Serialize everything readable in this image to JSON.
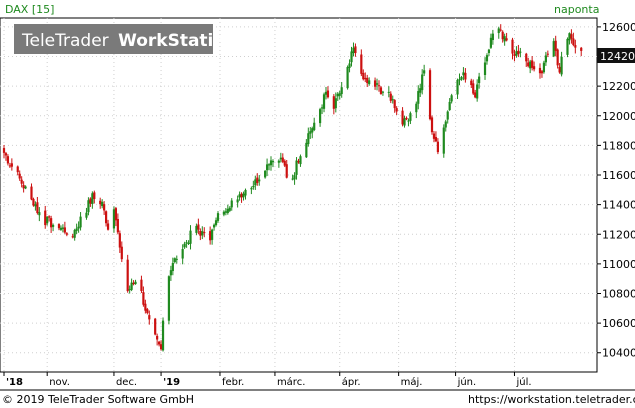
{
  "chart_data": {
    "type": "candlestick",
    "symbol_label": "DAX [15]",
    "period_label": "naponta",
    "watermark": {
      "part1": "TeleTrader",
      "part2": "WorkStation"
    },
    "last_price_label": "12420",
    "y_ticks": [
      10400,
      10600,
      10800,
      11000,
      11200,
      11400,
      11600,
      11800,
      12000,
      12200,
      12400,
      12600
    ],
    "y_tick_labels": [
      "10400",
      "10600",
      "10800",
      "11000",
      "11200",
      "11400",
      "11600",
      "11800",
      "12000",
      "12200",
      "",
      "12600"
    ],
    "ylim": [
      10270,
      12660
    ],
    "x_labels": [
      "'18",
      "nov.",
      "dec.",
      "'19",
      "febr.",
      "márc.",
      "ápr.",
      "máj.",
      "jún.",
      "júl."
    ],
    "x_label_bold": [
      true,
      false,
      false,
      true,
      false,
      false,
      false,
      false,
      false,
      false
    ],
    "x_label_days": [
      0,
      22,
      56,
      80,
      110,
      138,
      171,
      201,
      230,
      260
    ],
    "colors": {
      "up": "#1f8a1f",
      "down": "#cc1010",
      "last_price_bg": "#111111",
      "grid": "#cfcfcf",
      "watermark_bg": "#7a7a7a"
    },
    "series": [
      {
        "name": "DAX",
        "x": [
          0,
          20,
          35,
          45,
          50,
          53,
          56,
          62,
          68,
          75,
          80,
          82,
          88,
          98,
          104,
          110,
          118,
          128,
          135,
          142,
          145,
          152,
          158,
          164,
          168,
          175,
          178,
          182,
          196,
          204,
          210,
          214,
          218,
          221,
          228,
          232,
          236,
          240,
          250,
          258,
          263,
          266,
          272,
          280,
          283,
          285,
          288,
          294
        ],
        "values": [
          11750,
          11300,
          11200,
          11450,
          11400,
          11250,
          11400,
          10800,
          10900,
          10550,
          10420,
          10880,
          11050,
          11250,
          11150,
          11350,
          11450,
          11550,
          11700,
          11700,
          11500,
          11800,
          11950,
          12150,
          12050,
          12300,
          12450,
          12250,
          12150,
          11950,
          12100,
          12300,
          11900,
          11750,
          12150,
          12250,
          12280,
          12150,
          12600,
          12450,
          12400,
          12380,
          12250,
          12500,
          12300,
          12450,
          12550,
          12420
        ]
      }
    ]
  },
  "footer": {
    "copyright": "© 2019 TeleTrader Software GmbH",
    "url": "https://workstation.teletrader.com"
  }
}
